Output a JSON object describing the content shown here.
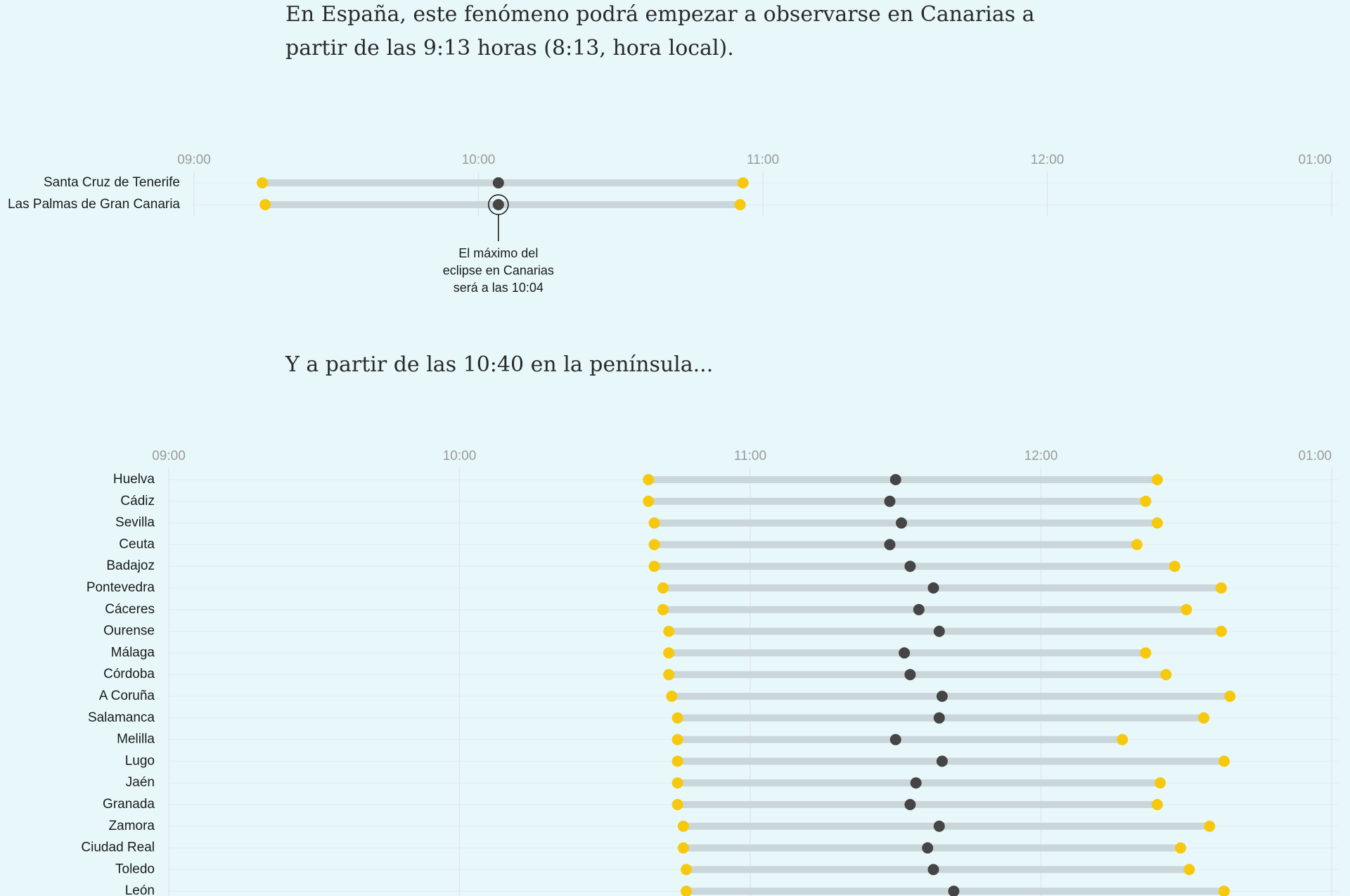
{
  "paragraphs": [
    "En España, este fenómeno podrá empezar a observarse en Canarias a",
    "partir de las 9:13 horas (8:13, hora local).",
    "Y a partir de las 10:40 en la península..."
  ],
  "chart_data": [
    {
      "type": "dumbbell",
      "categories": [
        "Santa Cruz de Tenerife",
        "Las Palmas de Gran Canaria"
      ],
      "series": [
        {
          "color": "#f6c90e",
          "values": [
            9.24,
            9.25
          ]
        },
        {
          "color": "#454545",
          "values": [
            10.07,
            10.07
          ]
        },
        {
          "color": "#f6c90e",
          "values": [
            10.93,
            10.92
          ]
        }
      ],
      "xlim": [
        9,
        13
      ],
      "xticks": [
        {
          "value": 9,
          "label": "09:00"
        },
        {
          "value": 10,
          "label": "10:00"
        },
        {
          "value": 11,
          "label": "11:00"
        },
        {
          "value": 12,
          "label": "12:00"
        },
        {
          "value": 13,
          "label": "01:00"
        }
      ],
      "grid": true,
      "annotation": [
        "El máximo del",
        "eclipse en Canarias",
        "será a las 10:04"
      ]
    },
    {
      "type": "dumbbell",
      "categories": [
        "Huelva",
        "Cádiz",
        "Sevilla",
        "Ceuta",
        "Badajoz",
        "Pontevedra",
        "Cáceres",
        "Ourense",
        "Málaga",
        "Córdoba",
        "A Coruña",
        "Salamanca",
        "Melilla",
        "Lugo",
        "Jaén",
        "Granada",
        "Zamora",
        "Ciudad Real",
        "Toledo",
        "León"
      ],
      "series": [
        {
          "color": "#f6c90e",
          "values": [
            10.65,
            10.65,
            10.67,
            10.67,
            10.67,
            10.7,
            10.7,
            10.72,
            10.72,
            10.72,
            10.73,
            10.75,
            10.75,
            10.75,
            10.75,
            10.75,
            10.77,
            10.77,
            10.78,
            10.78
          ]
        },
        {
          "color": "#454545",
          "values": [
            11.5,
            11.48,
            11.52,
            11.48,
            11.55,
            11.63,
            11.58,
            11.65,
            11.53,
            11.55,
            11.66,
            11.65,
            11.5,
            11.66,
            11.57,
            11.55,
            11.65,
            11.61,
            11.63,
            11.7
          ]
        },
        {
          "color": "#f6c90e",
          "values": [
            12.4,
            12.36,
            12.4,
            12.33,
            12.46,
            12.62,
            12.5,
            12.62,
            12.36,
            12.43,
            12.65,
            12.56,
            12.28,
            12.63,
            12.41,
            12.4,
            12.58,
            12.48,
            12.51,
            12.63
          ]
        }
      ],
      "xlim": [
        9,
        13
      ],
      "xticks": [
        {
          "value": 9,
          "label": "09:00"
        },
        {
          "value": 10,
          "label": "10:00"
        },
        {
          "value": 11,
          "label": "11:00"
        },
        {
          "value": 12,
          "label": "12:00"
        },
        {
          "value": 13,
          "label": "01:00"
        }
      ],
      "grid": true
    }
  ]
}
